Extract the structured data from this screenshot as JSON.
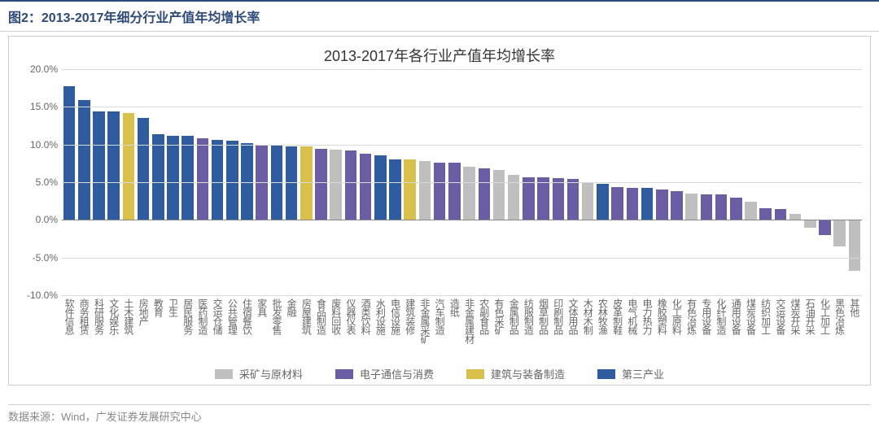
{
  "figure_label": "图2：2013-2017年细分行业产值年均增长率",
  "chart": {
    "type": "bar",
    "title": "2013-2017年各行业产值年均增长率",
    "title_fontsize": 18,
    "background_color": "#ffffff",
    "grid_color": "#d9d9d9",
    "zero_line_color": "#888888",
    "ylim": [
      -10,
      20
    ],
    "ytick_step": 5,
    "y_format": "percent",
    "label_fontsize": 12,
    "categories": [
      "软件信息",
      "商务租赁",
      "科研服务",
      "文化娱乐",
      "土木建筑",
      "房地产",
      "教育",
      "卫生",
      "居民服务",
      "医药制造",
      "交运仓储",
      "公共管理",
      "住宿餐饮",
      "家具",
      "批发零售",
      "金融",
      "房屋建筑",
      "食品制造",
      "废料回收",
      "仪器仪表",
      "酒类饮料",
      "水利设施",
      "电信设施",
      "建筑装修",
      "非金属采矿",
      "汽车制造",
      "造纸",
      "非金属建材",
      "农副食品",
      "有色采矿",
      "金属制品",
      "纺服制造",
      "烟草制品",
      "印刷制品",
      "文体用品",
      "木材木制",
      "农林牧渔",
      "皮革制鞋",
      "电气机械",
      "电力热力",
      "橡胶塑料",
      "化工原料",
      "有色冶炼",
      "专用设备",
      "化纤制造",
      "通用设备",
      "煤炭设备",
      "纺织加工",
      "交运设备",
      "煤炭开采",
      "石油开采",
      "化工加工",
      "黑色冶炼",
      "其他"
    ],
    "values": [
      17.7,
      15.9,
      14.4,
      14.4,
      14.2,
      13.5,
      11.4,
      11.2,
      11.1,
      10.8,
      10.6,
      10.5,
      10.2,
      10.0,
      10.0,
      9.8,
      9.7,
      9.4,
      9.3,
      9.2,
      8.8,
      8.6,
      8.0,
      8.0,
      7.8,
      7.6,
      7.6,
      7.0,
      6.8,
      6.6,
      6.0,
      5.6,
      5.6,
      5.5,
      5.4,
      5.0,
      4.8,
      4.4,
      4.3,
      4.2,
      4.0,
      3.8,
      3.5,
      3.4,
      3.4,
      2.9,
      2.4,
      1.6,
      1.4,
      0.8,
      -1.0,
      -2.0,
      -3.5,
      -6.8
    ],
    "series_index": [
      3,
      3,
      3,
      3,
      2,
      3,
      3,
      3,
      3,
      1,
      3,
      3,
      3,
      1,
      3,
      3,
      2,
      1,
      0,
      1,
      1,
      3,
      3,
      2,
      0,
      1,
      1,
      0,
      1,
      0,
      0,
      1,
      1,
      1,
      1,
      0,
      3,
      1,
      1,
      3,
      1,
      1,
      0,
      1,
      1,
      1,
      0,
      1,
      1,
      0,
      0,
      1,
      0,
      0
    ],
    "series": [
      {
        "name": "采矿与原材料",
        "color": "#bfbfbf"
      },
      {
        "name": "电子通信与消费",
        "color": "#6b5da3"
      },
      {
        "name": "建筑与装备制造",
        "color": "#d9c04a"
      },
      {
        "name": "第三产业",
        "color": "#2e5c9e"
      }
    ]
  },
  "source_label": "数据来源：Wind，广发证券发展研究中心"
}
